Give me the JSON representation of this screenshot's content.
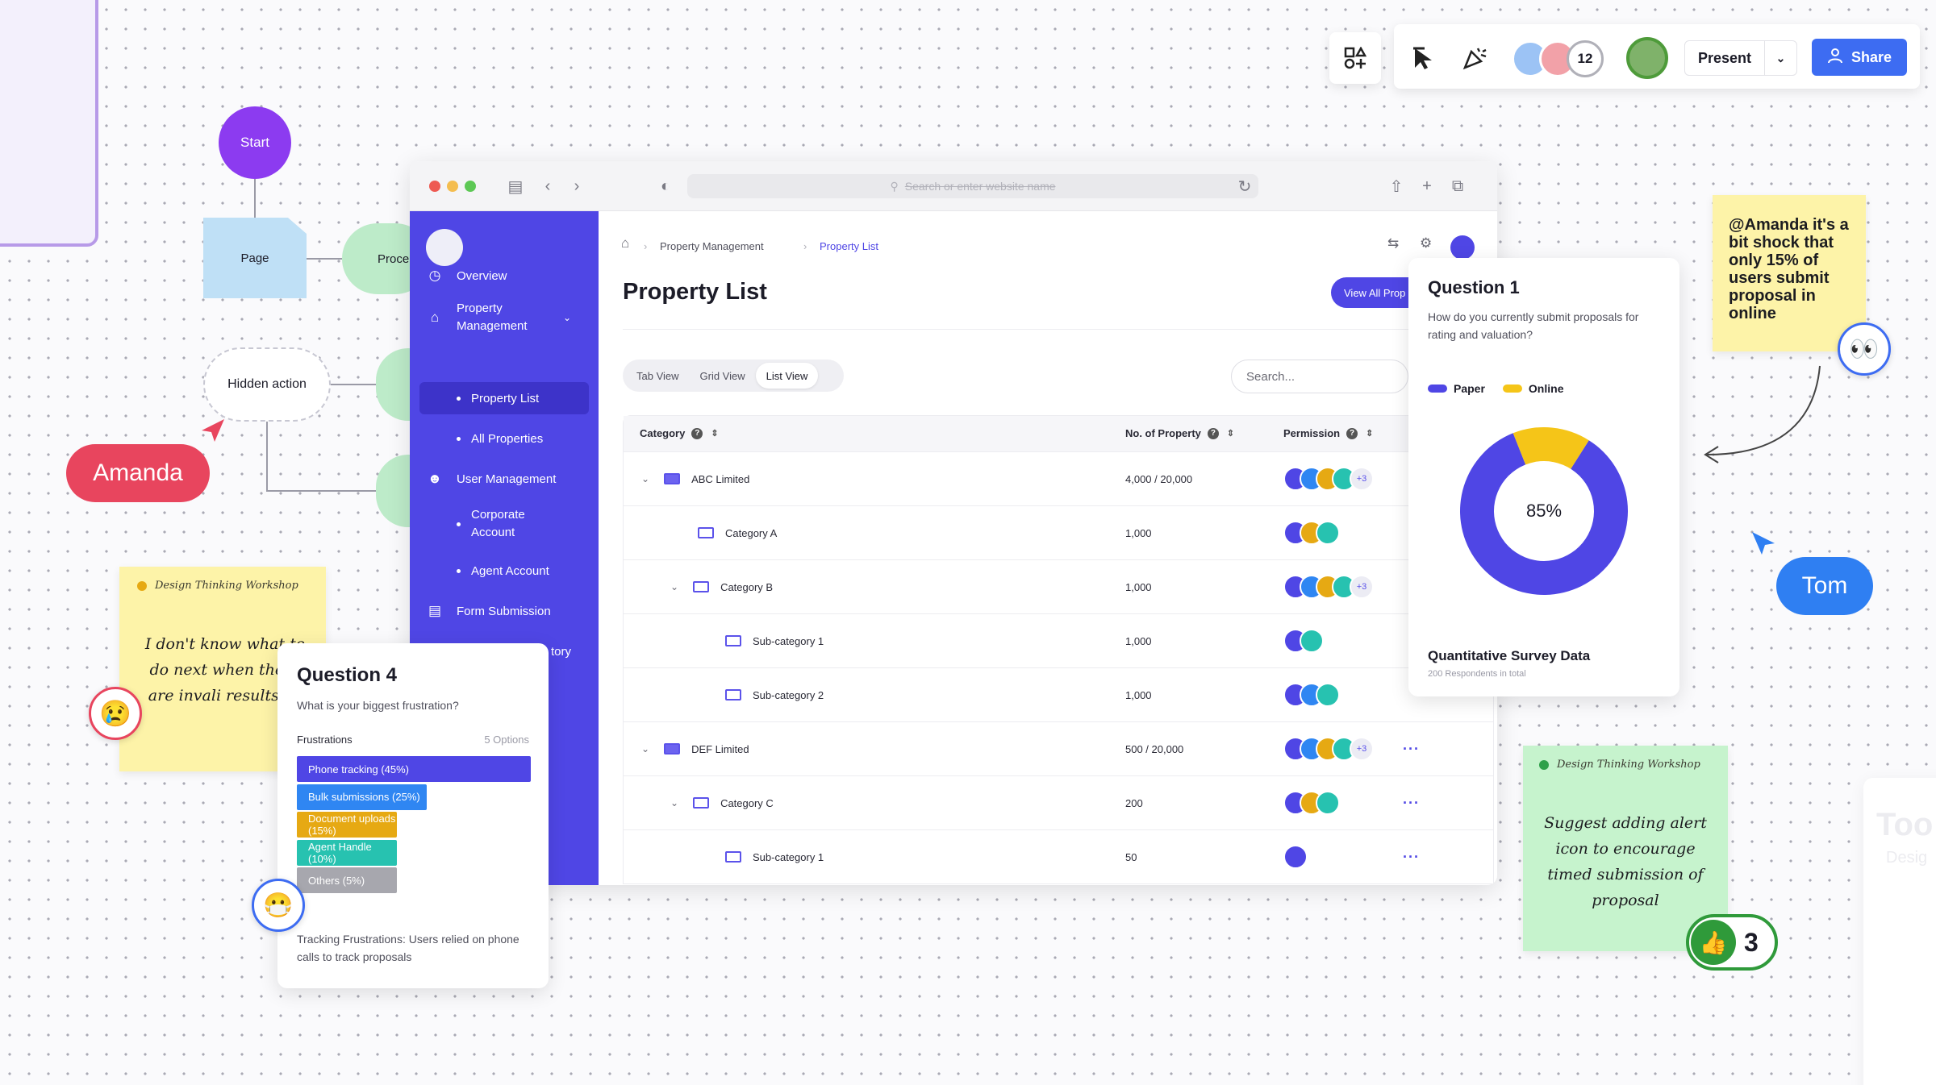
{
  "toolbar": {
    "present_label": "Present",
    "share_label": "Share",
    "collaborator_count": "12"
  },
  "flowchart": {
    "start": "Start",
    "page": "Page",
    "process": "Proce",
    "hidden_action": "Hidden action"
  },
  "cursors": {
    "amanda": "Amanda",
    "tom": "Tom"
  },
  "browser": {
    "url_placeholder": "Search or enter website name"
  },
  "sidebar": {
    "items": [
      {
        "label": "Overview",
        "icon": "pie-chart-icon"
      },
      {
        "label": "Property Management",
        "icon": "home-icon"
      },
      {
        "label": "Property List"
      },
      {
        "label": "All Properties"
      },
      {
        "label": "User Management",
        "icon": "user-icon"
      },
      {
        "label": "Corporate Account"
      },
      {
        "label": "Agent Account"
      },
      {
        "label": "Form Submission",
        "icon": "form-icon"
      },
      {
        "label": "tory"
      }
    ]
  },
  "breadcrumb": {
    "item1": "Property Management",
    "item2": "Property List"
  },
  "page": {
    "title": "Property List",
    "view_all": "View All Prop",
    "search_placeholder": "Search..."
  },
  "tabs": [
    "Tab View",
    "Grid View",
    "List View"
  ],
  "table": {
    "headers": {
      "category": "Category",
      "count": "No. of Property",
      "permission": "Permission"
    },
    "rows": [
      {
        "name": "ABC Limited",
        "count": "4,000 / 20,000",
        "extra": "+3"
      },
      {
        "name": "Category A",
        "count": "1,000"
      },
      {
        "name": "Category B",
        "count": "1,000",
        "extra": "+3"
      },
      {
        "name": "Sub-category 1",
        "count": "1,000"
      },
      {
        "name": "Sub-category 2",
        "count": "1,000"
      },
      {
        "name": "DEF Limited",
        "count": "500 / 20,000",
        "extra": "+3"
      },
      {
        "name": "Category C",
        "count": "200"
      },
      {
        "name": "Sub-category 1",
        "count": "50"
      }
    ]
  },
  "question1": {
    "title": "Question 1",
    "question": "How do you currently submit proposals for rating and valuation?",
    "legend": [
      "Paper",
      "Online"
    ],
    "center_label": "85%",
    "footer_title": "Quantitative Survey Data",
    "footer_sub": "200 Respondents in total",
    "colors": {
      "paper": "#4f46e5",
      "online": "#f5c518"
    }
  },
  "chart_data": {
    "type": "pie",
    "categories": [
      "Paper",
      "Online"
    ],
    "values": [
      85,
      15
    ],
    "title": "Question 1"
  },
  "question4": {
    "title": "Question 4",
    "question": "What is your biggest frustration?",
    "label": "Frustrations",
    "options": "5 Options",
    "bars": [
      {
        "label": "Phone tracking (45%)",
        "value": 45,
        "color": "#4f46e5"
      },
      {
        "label": "Bulk submissions (25%)",
        "value": 25,
        "color": "#2f86f2"
      },
      {
        "label": "Document uploads (15%)",
        "value": 15,
        "color": "#e6a913"
      },
      {
        "label": "Agent Handle (10%)",
        "value": 10,
        "color": "#27c2b0"
      },
      {
        "label": "Others (5%)",
        "value": 5,
        "color": "#a7a7ae"
      }
    ],
    "note": "Tracking Frustrations: Users relied on phone calls to track proposals"
  },
  "stickies": {
    "yellow_head": "Design Thinking Workshop",
    "yellow_text": "I don't know what to do next when there are invali results :<",
    "amanda_text": "@Amanda it's a bit shock that only 15% of users submit proposal in online",
    "green_head": "Design Thinking Workshop",
    "green_text": "Suggest adding alert icon to encourage timed submission of proposal",
    "likes": "3"
  },
  "faded": {
    "title": "Too",
    "sub": "Desig"
  }
}
